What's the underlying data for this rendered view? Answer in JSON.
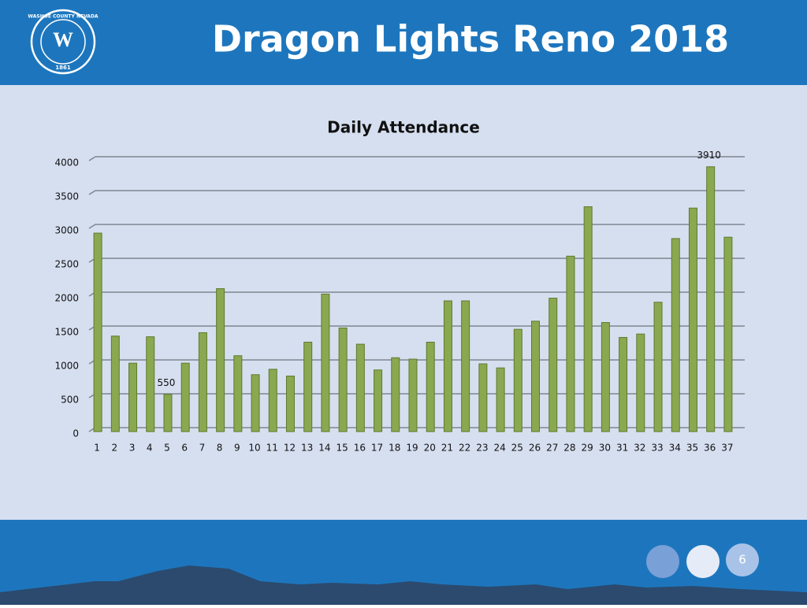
{
  "header": {
    "title": "Dragon Lights Reno 2018",
    "logo_top": "WASHOE COUNTY NEVADA",
    "logo_year": "1861"
  },
  "chart_data": {
    "type": "bar",
    "title": "Daily Attendance",
    "categories": [
      "1",
      "2",
      "3",
      "4",
      "5",
      "6",
      "7",
      "8",
      "9",
      "10",
      "11",
      "12",
      "13",
      "14",
      "15",
      "16",
      "17",
      "18",
      "19",
      "20",
      "21",
      "22",
      "23",
      "24",
      "25",
      "26",
      "27",
      "28",
      "29",
      "30",
      "31",
      "32",
      "33",
      "34",
      "35",
      "36",
      "37"
    ],
    "values": [
      2930,
      1410,
      1010,
      1400,
      550,
      1010,
      1460,
      2110,
      1120,
      840,
      920,
      820,
      1320,
      2030,
      1530,
      1290,
      910,
      1090,
      1070,
      1320,
      1930,
      1930,
      1000,
      940,
      1510,
      1630,
      1970,
      2590,
      3320,
      1610,
      1390,
      1440,
      1910,
      2850,
      3300,
      3910,
      2870
    ],
    "value_labels": [
      null,
      null,
      null,
      null,
      "550",
      null,
      null,
      null,
      null,
      null,
      null,
      null,
      null,
      null,
      null,
      null,
      null,
      null,
      null,
      null,
      null,
      null,
      null,
      null,
      null,
      null,
      null,
      null,
      null,
      null,
      null,
      null,
      null,
      null,
      null,
      "3910",
      null
    ],
    "color": "#8aa84f",
    "ylim": [
      0,
      4000
    ],
    "yticks": [
      0,
      500,
      1000,
      1500,
      2000,
      2500,
      3000,
      3500,
      4000
    ],
    "grid": true
  },
  "footer": {
    "page_number": "6"
  }
}
